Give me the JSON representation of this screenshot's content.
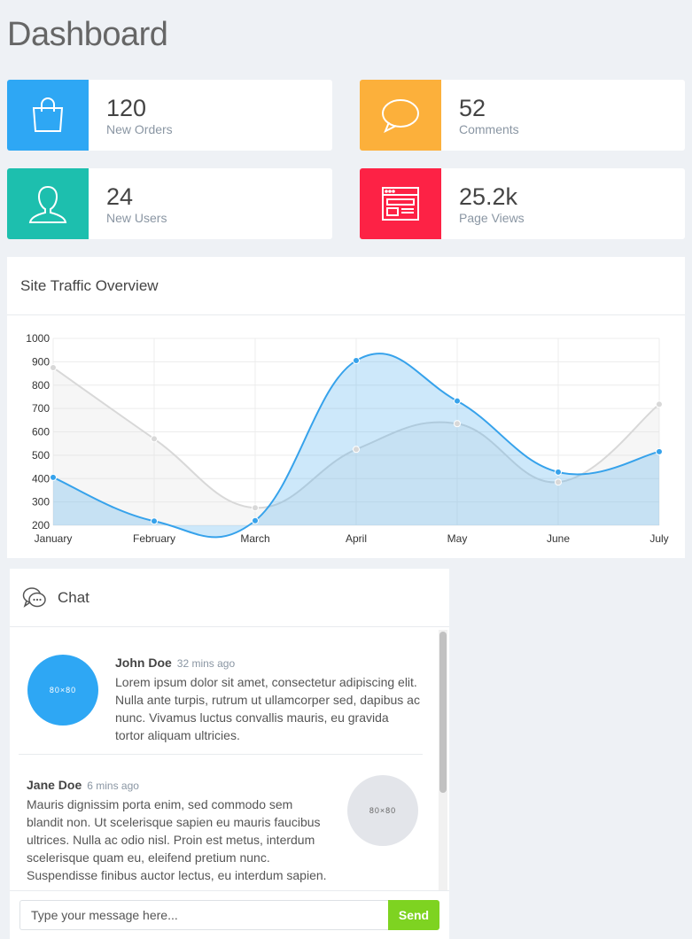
{
  "page": {
    "title": "Dashboard"
  },
  "stats": [
    {
      "value": "120",
      "label": "New Orders",
      "color": "#2ea7f4",
      "icon": "shopping-bag-icon"
    },
    {
      "value": "52",
      "label": "Comments",
      "color": "#fcb03b",
      "icon": "speech-bubble-icon"
    },
    {
      "value": "24",
      "label": "New Users",
      "color": "#1dbfae",
      "icon": "user-icon"
    },
    {
      "value": "25.2k",
      "label": "Page Views",
      "color": "#fd2245",
      "icon": "browser-window-icon"
    }
  ],
  "traffic": {
    "title": "Site Traffic Overview"
  },
  "chart_data": {
    "type": "area",
    "categories": [
      "January",
      "February",
      "March",
      "April",
      "May",
      "June",
      "July"
    ],
    "series": [
      {
        "color": "#d8d8d8",
        "values": [
          875,
          570,
          275,
          525,
          635,
          385,
          718
        ]
      },
      {
        "color": "#36a2eb",
        "values": [
          405,
          218,
          220,
          905,
          732,
          428,
          515
        ]
      }
    ],
    "ylim": [
      200,
      1000
    ],
    "yticks": [
      200,
      300,
      400,
      500,
      600,
      700,
      800,
      900,
      1000
    ],
    "grid": true,
    "title": "",
    "xlabel": "",
    "ylabel": ""
  },
  "chat": {
    "title": "Chat",
    "icon": "chat-bubbles-icon",
    "messages": [
      {
        "name": "John Doe",
        "time": "32 mins ago",
        "avatar_text": "80×80",
        "avatar_color": "#2ea7f4",
        "text": "Lorem ipsum dolor sit amet, consectetur adipiscing elit. Nulla ante turpis, rutrum ut ullamcorper sed, dapibus ac nunc. Vivamus luctus convallis mauris, eu gravida tortor aliquam ultricies."
      },
      {
        "name": "Jane Doe",
        "time": "6 mins ago",
        "avatar_text": "80×80",
        "avatar_color": "#e3e5ea",
        "text": "Mauris dignissim porta enim, sed commodo sem blandit non. Ut scelerisque sapien eu mauris faucibus ultrices. Nulla ac odio nisl. Proin est metus, interdum scelerisque quam eu, eleifend pretium nunc. Suspendisse finibus auctor lectus, eu interdum sapien."
      }
    ],
    "input_placeholder": "Type your message here...",
    "send_label": "Send"
  }
}
